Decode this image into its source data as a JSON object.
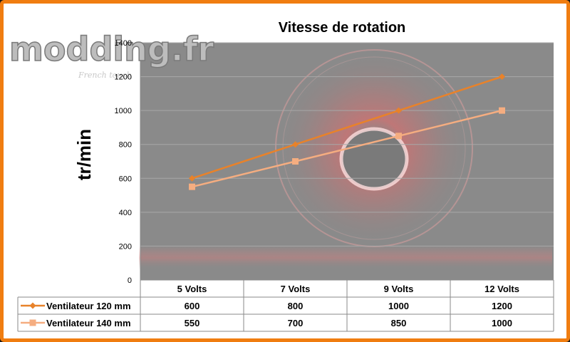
{
  "logo": {
    "text": "modding.fr",
    "tagline": "French touch"
  },
  "colors": {
    "frame": "#f07d10",
    "series1": "#e8822a",
    "series2": "#f5ad80",
    "plot_bg": "#8a8a8a"
  },
  "chart_data": {
    "type": "line",
    "title": "Vitesse de rotation",
    "xlabel": "",
    "ylabel": "tr/min",
    "ylim": [
      0,
      1400
    ],
    "yticks": [
      0,
      200,
      400,
      600,
      800,
      1000,
      1200,
      1400
    ],
    "grid": true,
    "legend": "table-bottom",
    "categories": [
      "5 Volts",
      "7 Volts",
      "9 Volts",
      "12 Volts"
    ],
    "series": [
      {
        "name": "Ventilateur 120 mm",
        "marker": "diamond",
        "values": [
          600,
          800,
          1000,
          1200
        ]
      },
      {
        "name": "Ventilateur 140 mm",
        "marker": "square",
        "values": [
          550,
          700,
          850,
          1000
        ]
      }
    ]
  }
}
